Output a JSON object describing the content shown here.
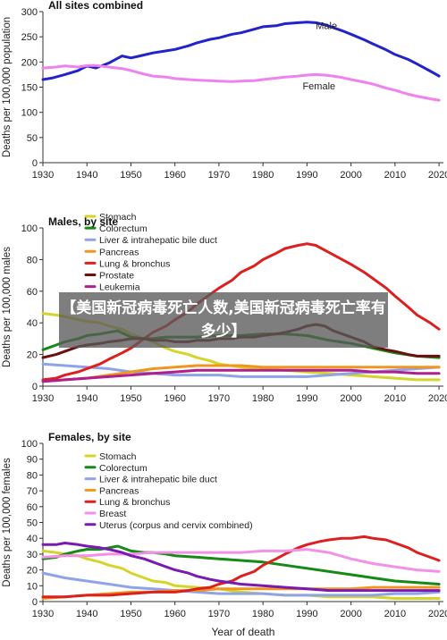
{
  "overlay": {
    "banner_text": "【美国新冠病毒死亡人数,美国新冠病毒死亡率有多少】"
  },
  "figure": {
    "xlabel": "Year of death"
  },
  "colors": {
    "male": "#2323cc",
    "female": "#ee82ee",
    "stomach": "#d4d42a",
    "colorectum": "#168a16",
    "liver": "#8fa4e8",
    "pancreas": "#f0961e",
    "lung": "#dc2020",
    "prostate": "#6b1010",
    "leukemia": "#b0208c",
    "breast": "#f291e6",
    "uterus": "#7a1ab0"
  },
  "chart_data": [
    {
      "type": "line",
      "title": "All sites combined",
      "ylabel": "Deaths per 100,000 population",
      "xlim": [
        1930,
        2021
      ],
      "ylim": [
        0,
        300
      ],
      "xticks": [
        1930,
        1940,
        1950,
        1960,
        1970,
        1980,
        1990,
        2000,
        2010,
        2020
      ],
      "yticks": [
        0,
        50,
        100,
        150,
        200,
        250,
        300
      ],
      "grid": false,
      "series": [
        {
          "name": "Male",
          "color_key": "male",
          "x": [
            1930,
            1932,
            1935,
            1938,
            1940,
            1942,
            1945,
            1948,
            1950,
            1952,
            1955,
            1958,
            1960,
            1963,
            1965,
            1968,
            1970,
            1973,
            1975,
            1978,
            1980,
            1983,
            1985,
            1988,
            1990,
            1992,
            1994,
            1996,
            1998,
            2000,
            2003,
            2005,
            2008,
            2010,
            2013,
            2015,
            2018,
            2020
          ],
          "y": [
            165,
            168,
            175,
            183,
            192,
            188,
            198,
            212,
            208,
            212,
            218,
            222,
            225,
            232,
            238,
            245,
            248,
            255,
            258,
            265,
            270,
            272,
            276,
            278,
            279,
            278,
            274,
            268,
            262,
            255,
            244,
            236,
            224,
            215,
            205,
            196,
            182,
            172
          ]
        },
        {
          "name": "Female",
          "color_key": "female",
          "x": [
            1930,
            1933,
            1935,
            1938,
            1940,
            1942,
            1945,
            1948,
            1950,
            1953,
            1955,
            1958,
            1960,
            1963,
            1965,
            1968,
            1970,
            1973,
            1975,
            1978,
            1980,
            1983,
            1985,
            1988,
            1990,
            1992,
            1994,
            1996,
            1998,
            2000,
            2003,
            2005,
            2008,
            2010,
            2013,
            2015,
            2018,
            2020
          ],
          "y": [
            188,
            190,
            192,
            190,
            193,
            193,
            190,
            187,
            183,
            176,
            172,
            170,
            167,
            165,
            164,
            163,
            162,
            161,
            162,
            163,
            165,
            168,
            170,
            172,
            174,
            175,
            174,
            172,
            169,
            165,
            160,
            156,
            148,
            144,
            136,
            132,
            127,
            124
          ]
        }
      ],
      "labels": [
        {
          "text": "Male",
          "x": 1992,
          "y": 265
        },
        {
          "text": "Female",
          "x": 1989,
          "y": 146
        }
      ]
    },
    {
      "type": "line",
      "title": "Males, by site",
      "ylabel": "Deaths per 100,000 males",
      "xlim": [
        1930,
        2021
      ],
      "ylim": [
        0,
        100
      ],
      "xticks": [
        1930,
        1940,
        1950,
        1960,
        1970,
        1980,
        1990,
        2000,
        2010,
        2020
      ],
      "yticks": [
        0,
        20,
        40,
        60,
        80,
        100
      ],
      "grid": false,
      "legend": "upper-left",
      "series": [
        {
          "name": "Stomach",
          "color_key": "stomach",
          "x": [
            1930,
            1933,
            1935,
            1938,
            1940,
            1943,
            1945,
            1948,
            1950,
            1953,
            1955,
            1958,
            1960,
            1963,
            1965,
            1968,
            1970,
            1975,
            1980,
            1985,
            1990,
            1995,
            2000,
            2005,
            2010,
            2015,
            2020
          ],
          "y": [
            46,
            45,
            44,
            42,
            41,
            40,
            38,
            36,
            33,
            30,
            28,
            24,
            22,
            20,
            18,
            16,
            14,
            12,
            11,
            10,
            9,
            8,
            7,
            6,
            5,
            4,
            4
          ]
        },
        {
          "name": "Colorectum",
          "color_key": "colorectum",
          "x": [
            1930,
            1933,
            1935,
            1938,
            1940,
            1943,
            1945,
            1947,
            1950,
            1953,
            1955,
            1958,
            1960,
            1965,
            1970,
            1975,
            1980,
            1985,
            1990,
            1995,
            2000,
            2005,
            2010,
            2015,
            2020
          ],
          "y": [
            23,
            26,
            28,
            30,
            32,
            33,
            34,
            35,
            31,
            30,
            30,
            31,
            31,
            31,
            32,
            32,
            33,
            33,
            32,
            29,
            27,
            24,
            21,
            19,
            18
          ]
        },
        {
          "name": "Liver & intrahepatic bile duct",
          "color_key": "liver",
          "x": [
            1930,
            1935,
            1940,
            1945,
            1950,
            1955,
            1960,
            1965,
            1970,
            1975,
            1980,
            1985,
            1990,
            1995,
            2000,
            2005,
            2010,
            2015,
            2020
          ],
          "y": [
            14,
            13,
            12,
            11,
            9,
            8,
            7,
            7,
            7,
            6,
            6,
            6,
            6,
            7,
            8,
            9,
            10,
            11,
            12
          ]
        },
        {
          "name": "Pancreas",
          "color_key": "pancreas",
          "x": [
            1930,
            1935,
            1940,
            1945,
            1950,
            1955,
            1960,
            1965,
            1970,
            1975,
            1980,
            1985,
            1990,
            1995,
            2000,
            2005,
            2010,
            2015,
            2020
          ],
          "y": [
            3,
            4,
            5,
            7,
            9,
            11,
            12,
            13,
            13,
            13,
            12,
            12,
            12,
            12,
            12,
            12,
            12,
            12,
            12
          ]
        },
        {
          "name": "Lung & bronchus",
          "color_key": "lung",
          "x": [
            1930,
            1933,
            1935,
            1938,
            1940,
            1943,
            1945,
            1948,
            1950,
            1953,
            1955,
            1958,
            1960,
            1963,
            1965,
            1968,
            1970,
            1973,
            1975,
            1978,
            1980,
            1983,
            1985,
            1988,
            1990,
            1992,
            1994,
            1996,
            1998,
            2000,
            2003,
            2005,
            2008,
            2010,
            2013,
            2015,
            2018,
            2020
          ],
          "y": [
            4,
            5,
            7,
            9,
            11,
            14,
            17,
            21,
            24,
            30,
            34,
            38,
            42,
            47,
            52,
            58,
            62,
            67,
            72,
            76,
            80,
            84,
            87,
            89,
            90,
            89,
            86,
            83,
            80,
            77,
            72,
            68,
            62,
            57,
            50,
            45,
            40,
            36
          ]
        },
        {
          "name": "Prostate",
          "color_key": "prostate",
          "x": [
            1930,
            1933,
            1935,
            1938,
            1940,
            1943,
            1945,
            1948,
            1950,
            1953,
            1955,
            1958,
            1960,
            1963,
            1965,
            1968,
            1970,
            1973,
            1975,
            1978,
            1980,
            1983,
            1985,
            1988,
            1990,
            1992,
            1994,
            1996,
            1998,
            2000,
            2003,
            2005,
            2008,
            2010,
            2013,
            2015,
            2018,
            2020
          ],
          "y": [
            18,
            20,
            22,
            25,
            26,
            27,
            28,
            29,
            30,
            30,
            29,
            29,
            28,
            28,
            29,
            29,
            30,
            30,
            31,
            31,
            32,
            33,
            34,
            36,
            38,
            39,
            38,
            35,
            33,
            31,
            28,
            25,
            23,
            22,
            20,
            19,
            19,
            19
          ]
        },
        {
          "name": "Leukemia",
          "color_key": "leukemia",
          "x": [
            1930,
            1935,
            1940,
            1945,
            1950,
            1955,
            1960,
            1965,
            1970,
            1975,
            1980,
            1985,
            1990,
            1995,
            2000,
            2005,
            2010,
            2015,
            2020
          ],
          "y": [
            3,
            4,
            5,
            6,
            7,
            8,
            9,
            10,
            10,
            10,
            10,
            10,
            10,
            10,
            10,
            9,
            9,
            8,
            8
          ]
        }
      ]
    },
    {
      "type": "line",
      "title": "Females, by site",
      "ylabel": "Deaths per 100,000 females",
      "xlim": [
        1930,
        2021
      ],
      "ylim": [
        0,
        100
      ],
      "xticks": [
        1930,
        1940,
        1950,
        1960,
        1970,
        1980,
        1990,
        2000,
        2010,
        2020
      ],
      "yticks": [
        0,
        10,
        20,
        30,
        40,
        50,
        60,
        70,
        80,
        90,
        100
      ],
      "grid": false,
      "legend": "upper-left",
      "series": [
        {
          "name": "Stomach",
          "color_key": "stomach",
          "x": [
            1930,
            1933,
            1935,
            1938,
            1940,
            1943,
            1945,
            1948,
            1950,
            1953,
            1955,
            1958,
            1960,
            1965,
            1970,
            1975,
            1980,
            1985,
            1990,
            1995,
            2000,
            2005,
            2010,
            2015,
            2020
          ],
          "y": [
            32,
            31,
            30,
            29,
            27,
            25,
            23,
            21,
            18,
            15,
            13,
            12,
            10,
            9,
            8,
            6,
            5,
            4,
            4,
            3,
            3,
            3,
            2,
            2,
            2
          ]
        },
        {
          "name": "Colorectum",
          "color_key": "colorectum",
          "x": [
            1930,
            1933,
            1935,
            1938,
            1940,
            1943,
            1945,
            1947,
            1950,
            1953,
            1955,
            1958,
            1960,
            1965,
            1970,
            1975,
            1980,
            1985,
            1990,
            1995,
            2000,
            2005,
            2010,
            2015,
            2020
          ],
          "y": [
            27,
            28,
            30,
            32,
            33,
            33,
            34,
            35,
            32,
            31,
            31,
            30,
            29,
            28,
            27,
            26,
            25,
            23,
            21,
            19,
            17,
            15,
            13,
            12,
            11
          ]
        },
        {
          "name": "Liver & intrahepatic bile duct",
          "color_key": "liver",
          "x": [
            1930,
            1935,
            1940,
            1945,
            1950,
            1955,
            1960,
            1965,
            1970,
            1975,
            1980,
            1985,
            1990,
            1995,
            2000,
            2005,
            2010,
            2015,
            2020
          ],
          "y": [
            18,
            15,
            13,
            11,
            9,
            8,
            7,
            6,
            5,
            5,
            5,
            4,
            4,
            4,
            4,
            4,
            5,
            5,
            6
          ]
        },
        {
          "name": "Pancreas",
          "color_key": "pancreas",
          "x": [
            1930,
            1935,
            1940,
            1945,
            1950,
            1955,
            1960,
            1965,
            1970,
            1975,
            1980,
            1985,
            1990,
            1995,
            2000,
            2005,
            2010,
            2015,
            2020
          ],
          "y": [
            2,
            3,
            4,
            5,
            6,
            6,
            7,
            7,
            8,
            8,
            8,
            8,
            8,
            8,
            8,
            9,
            9,
            9,
            9
          ]
        },
        {
          "name": "Lung & bronchus",
          "color_key": "lung",
          "x": [
            1930,
            1935,
            1940,
            1945,
            1950,
            1955,
            1960,
            1963,
            1965,
            1968,
            1970,
            1973,
            1975,
            1978,
            1980,
            1983,
            1985,
            1988,
            1990,
            1993,
            1995,
            1998,
            2000,
            2003,
            2005,
            2008,
            2010,
            2013,
            2015,
            2018,
            2020
          ],
          "y": [
            3,
            3,
            4,
            4,
            5,
            6,
            6,
            7,
            8,
            9,
            11,
            13,
            16,
            19,
            23,
            27,
            30,
            34,
            36,
            38,
            39,
            40,
            40,
            41,
            40,
            39,
            37,
            34,
            31,
            28,
            26
          ]
        },
        {
          "name": "Breast",
          "color_key": "breast",
          "x": [
            1930,
            1935,
            1940,
            1945,
            1950,
            1955,
            1960,
            1965,
            1970,
            1975,
            1980,
            1985,
            1990,
            1995,
            2000,
            2005,
            2010,
            2015,
            2020
          ],
          "y": [
            28,
            29,
            29,
            30,
            30,
            31,
            31,
            31,
            31,
            31,
            32,
            32,
            33,
            31,
            27,
            24,
            22,
            20,
            19
          ]
        },
        {
          "name": "Uterus (corpus and cervix combined)",
          "color_key": "uterus",
          "x": [
            1930,
            1933,
            1935,
            1938,
            1940,
            1943,
            1945,
            1948,
            1950,
            1953,
            1955,
            1958,
            1960,
            1963,
            1965,
            1968,
            1970,
            1975,
            1980,
            1985,
            1990,
            1995,
            2000,
            2005,
            2010,
            2015,
            2020
          ],
          "y": [
            36,
            36,
            37,
            36,
            35,
            34,
            33,
            31,
            29,
            27,
            25,
            22,
            20,
            18,
            16,
            14,
            13,
            11,
            10,
            9,
            8,
            7,
            7,
            7,
            7,
            7,
            7
          ]
        }
      ]
    }
  ]
}
